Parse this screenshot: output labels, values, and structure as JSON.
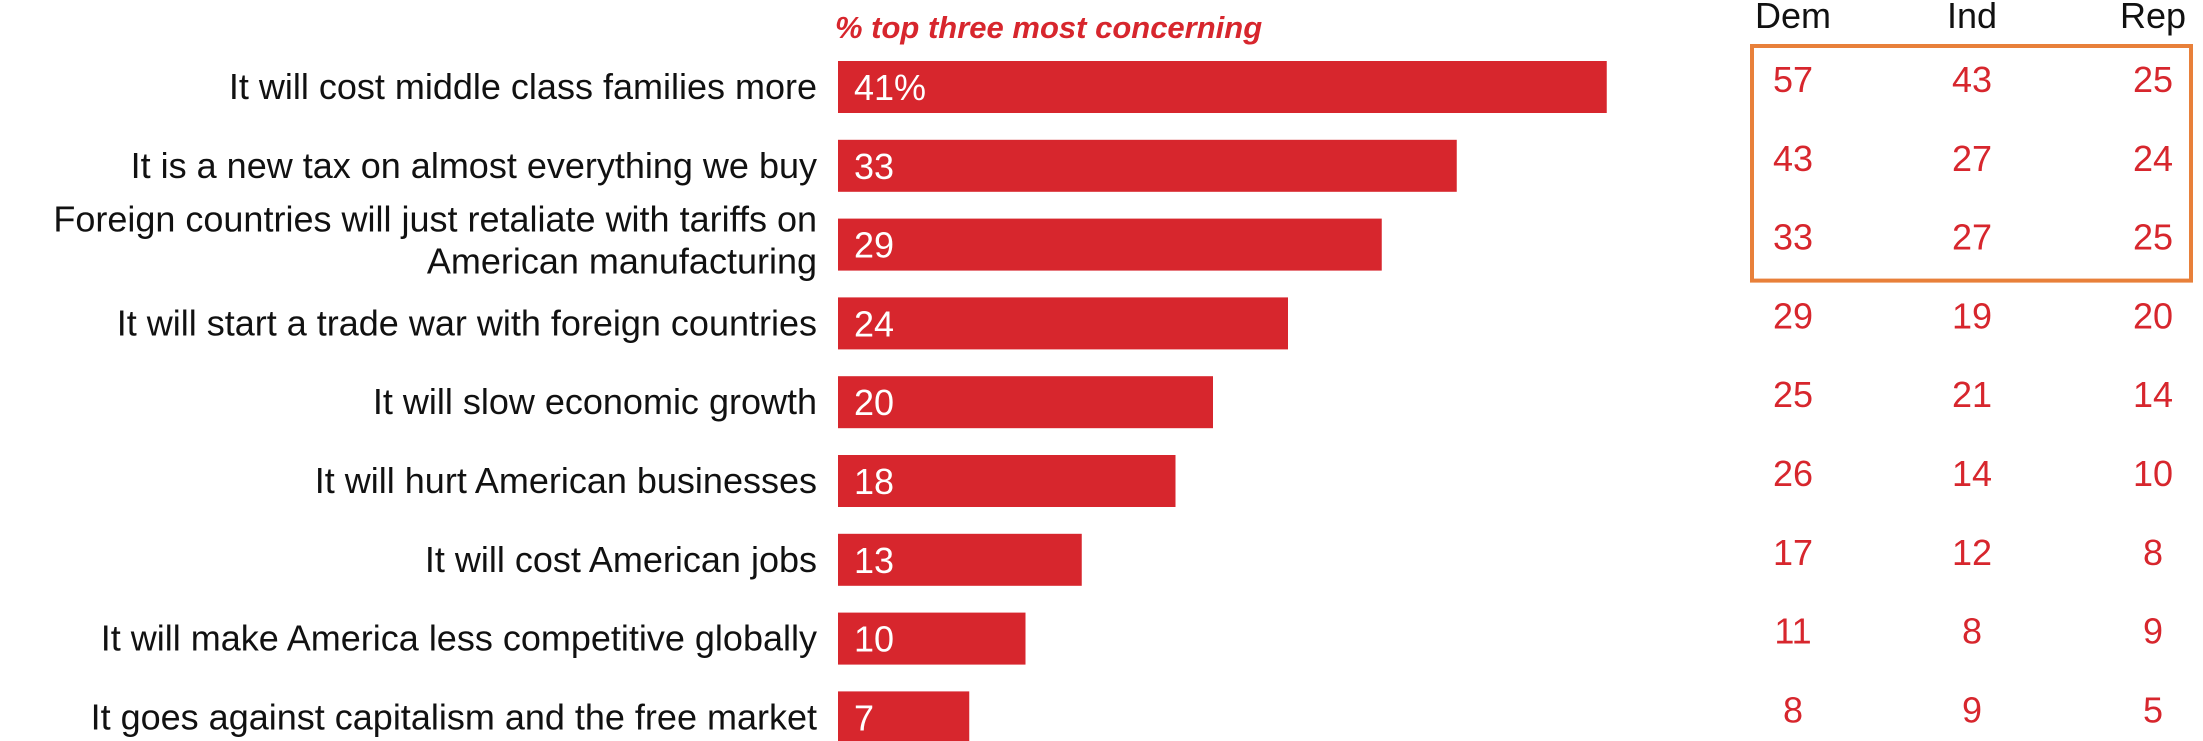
{
  "chart_data": {
    "type": "bar",
    "orientation": "horizontal",
    "subtitle": "% top three most concerning",
    "categories": [
      [
        "It will cost middle class families more"
      ],
      [
        "It is a new tax on almost everything we buy"
      ],
      [
        "Foreign countries will just retaliate with tariffs on",
        "American manufacturing"
      ],
      [
        "It will start a trade war with foreign countries"
      ],
      [
        "It will slow economic growth"
      ],
      [
        "It will hurt American businesses"
      ],
      [
        "It will cost American jobs"
      ],
      [
        "It will make America less competitive globally"
      ],
      [
        "It goes against capitalism and the free market"
      ]
    ],
    "values": [
      41,
      33,
      29,
      24,
      20,
      18,
      13,
      10,
      7
    ],
    "value_labels": [
      "41%",
      "33",
      "29",
      "24",
      "20",
      "18",
      "13",
      "10",
      "7"
    ],
    "xlim": [
      0,
      45
    ],
    "party_breakdown": {
      "headers": [
        "Dem",
        "Ind",
        "Rep"
      ],
      "rows": [
        [
          57,
          43,
          25
        ],
        [
          43,
          27,
          24
        ],
        [
          33,
          27,
          25
        ],
        [
          29,
          19,
          20
        ],
        [
          25,
          21,
          14
        ],
        [
          26,
          14,
          10
        ],
        [
          17,
          12,
          8
        ],
        [
          11,
          8,
          9
        ],
        [
          8,
          9,
          5
        ]
      ],
      "highlighted_rows": [
        0,
        1,
        2
      ]
    },
    "colors": {
      "bar": "#d7262d",
      "value_text": "#d7262d",
      "highlight_box": "#e8803a"
    }
  }
}
